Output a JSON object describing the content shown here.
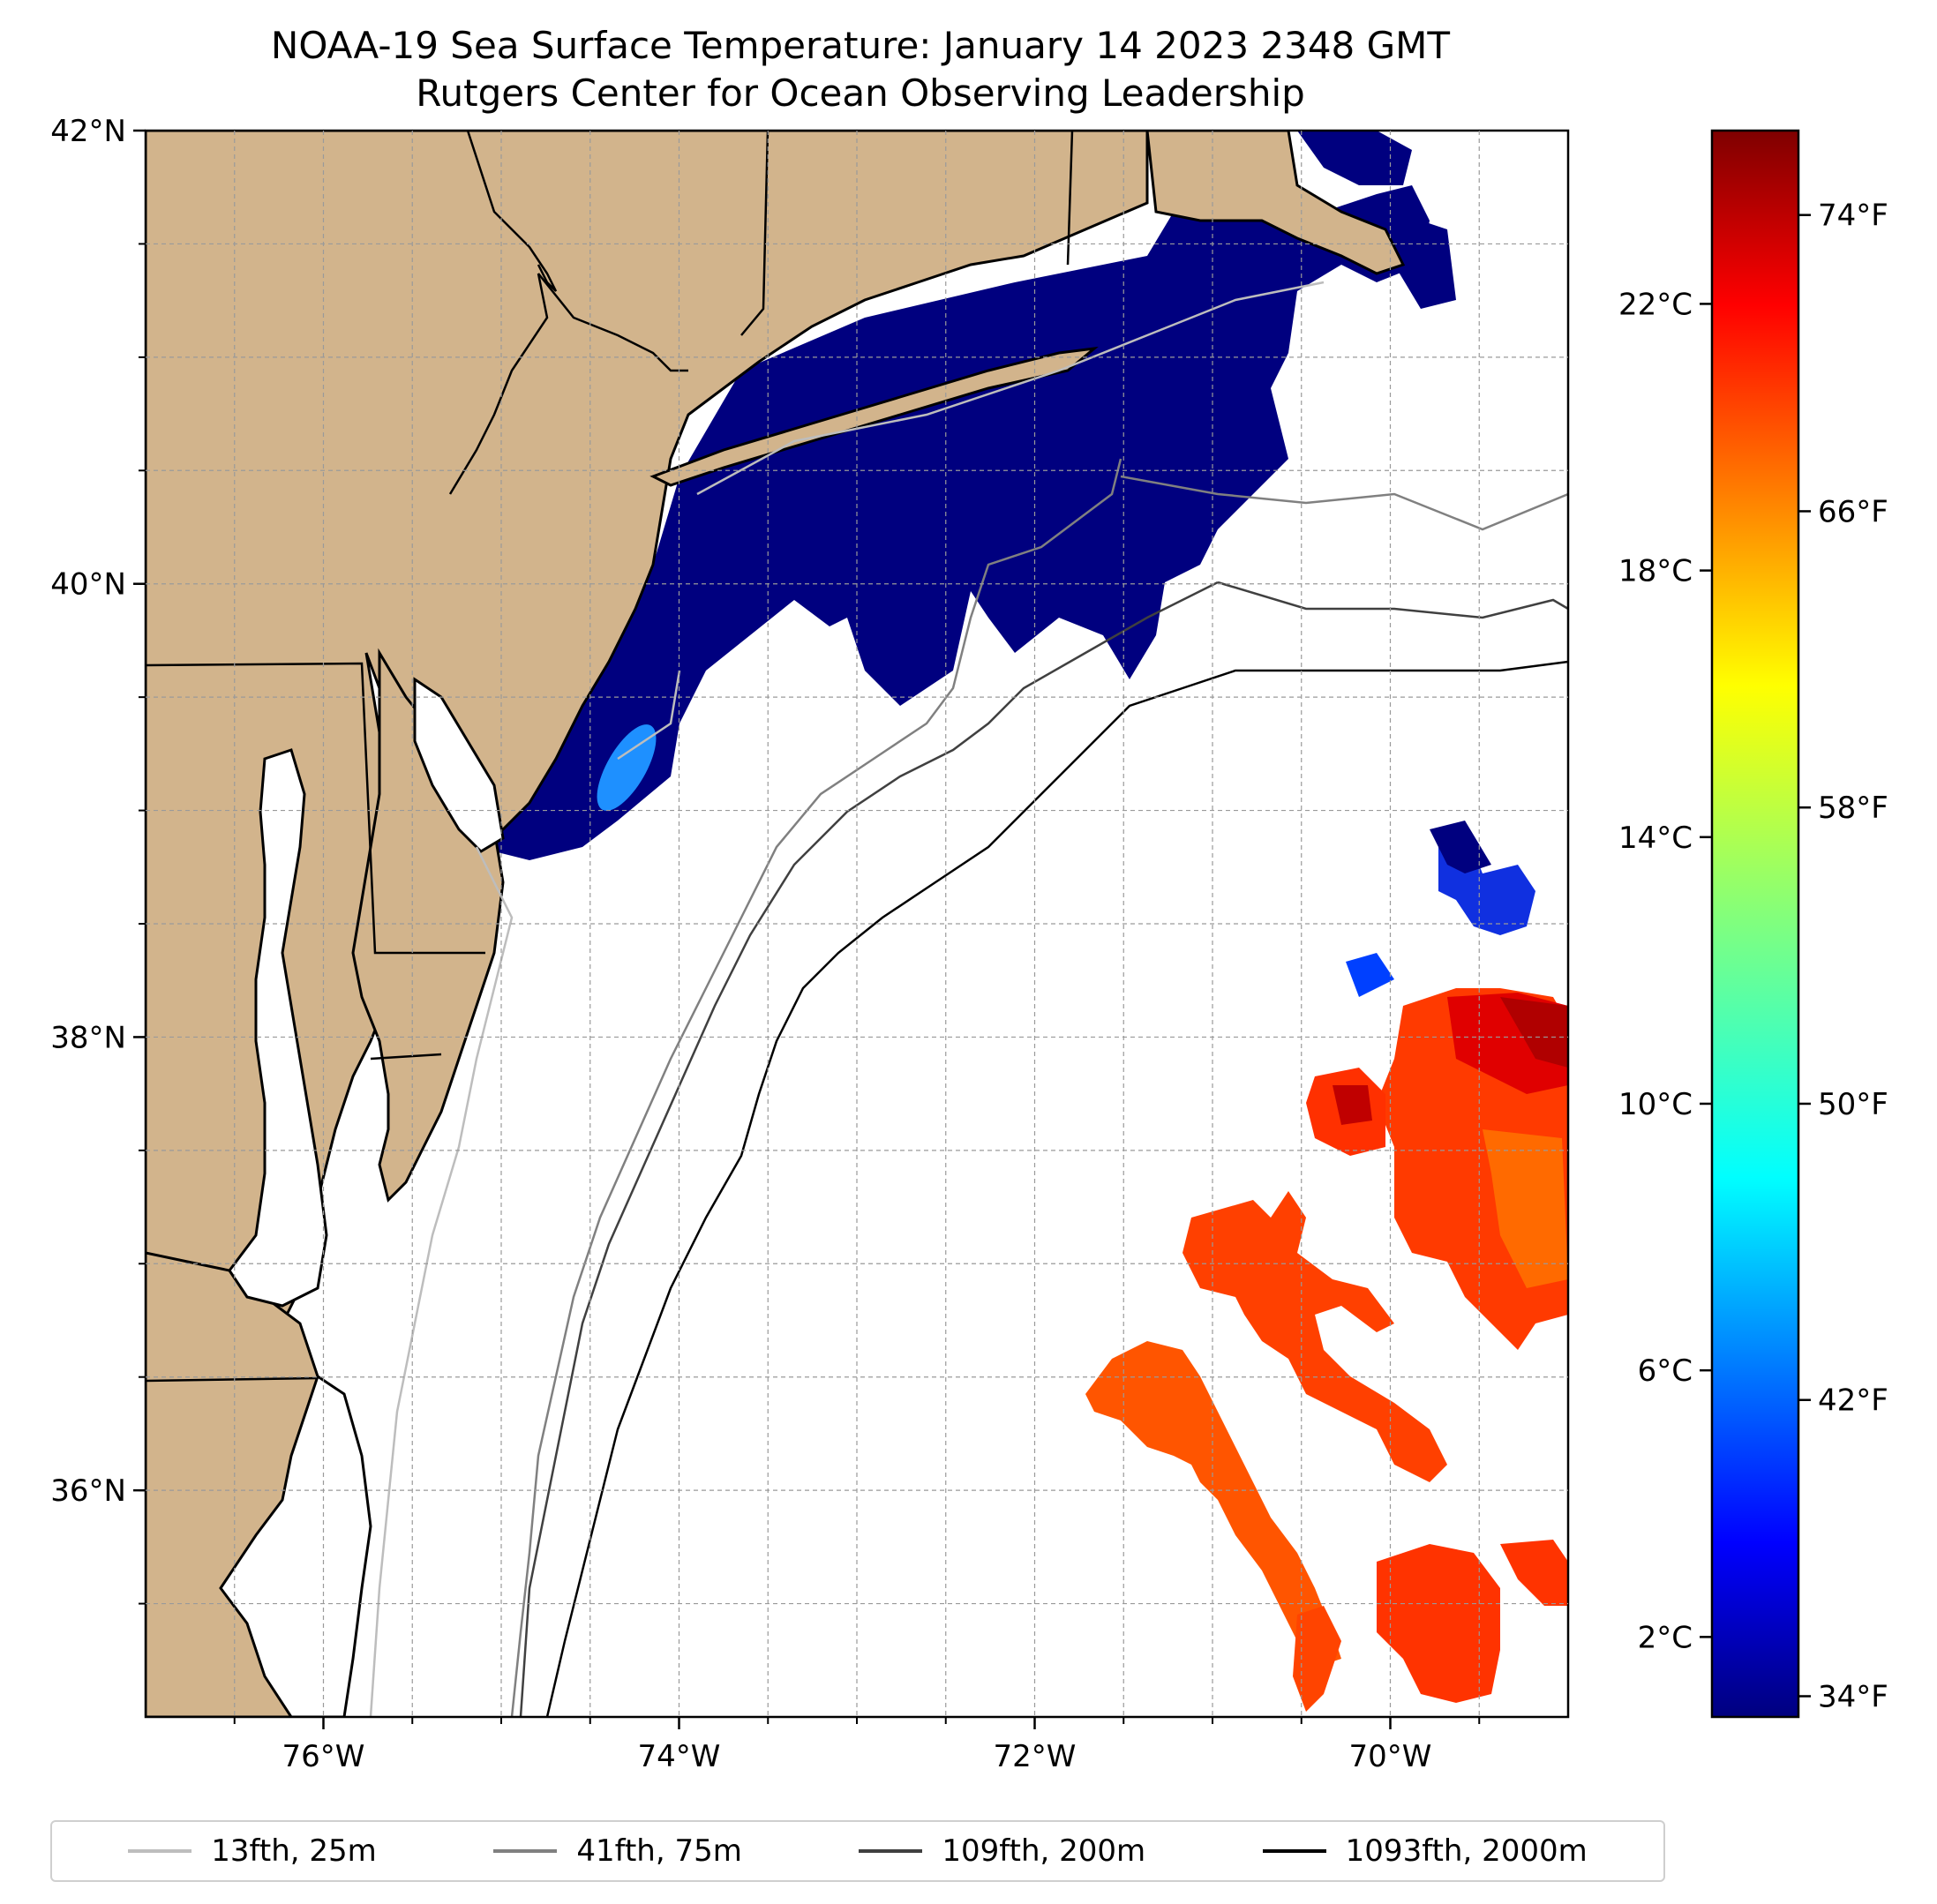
{
  "title_line1": "NOAA-19 Sea Surface Temperature: January 14 2023 2348 GMT",
  "title_line2": "Rutgers Center for Ocean Observing Leadership",
  "map": {
    "lon_range": [
      -77,
      -69
    ],
    "lat_range": [
      35,
      42
    ],
    "gridlines": true,
    "land_color": "#d2b48c",
    "lon_ticks": [
      {
        "value": -76,
        "label": "76°W"
      },
      {
        "value": -74,
        "label": "74°W"
      },
      {
        "value": -72,
        "label": "72°W"
      },
      {
        "value": -70,
        "label": "70°W"
      }
    ],
    "lat_ticks": [
      {
        "value": 42,
        "label": "42°N"
      },
      {
        "value": 40,
        "label": "40°N"
      },
      {
        "value": 38,
        "label": "38°N"
      },
      {
        "value": 36,
        "label": "36°N"
      }
    ]
  },
  "colorbar": {
    "colormap": "jet",
    "celsius_range": [
      0.8,
      24.6
    ],
    "celsius_ticks": [
      {
        "value": 2,
        "label": "2°C"
      },
      {
        "value": 6,
        "label": "6°C"
      },
      {
        "value": 10,
        "label": "10°C"
      },
      {
        "value": 14,
        "label": "14°C"
      },
      {
        "value": 18,
        "label": "18°C"
      },
      {
        "value": 22,
        "label": "22°C"
      }
    ],
    "fahrenheit_ticks": [
      {
        "value": 34,
        "label": "34°F"
      },
      {
        "value": 42,
        "label": "42°F"
      },
      {
        "value": 50,
        "label": "50°F"
      },
      {
        "value": 58,
        "label": "58°F"
      },
      {
        "value": 66,
        "label": "66°F"
      },
      {
        "value": 74,
        "label": "74°F"
      }
    ]
  },
  "legend": [
    {
      "label": "13fth, 25m",
      "color": "#bdbdbd"
    },
    {
      "label": "41fth, 75m",
      "color": "#808080"
    },
    {
      "label": "109fth, 200m",
      "color": "#404040"
    },
    {
      "label": "1093fth, 2000m",
      "color": "#000000"
    }
  ]
}
